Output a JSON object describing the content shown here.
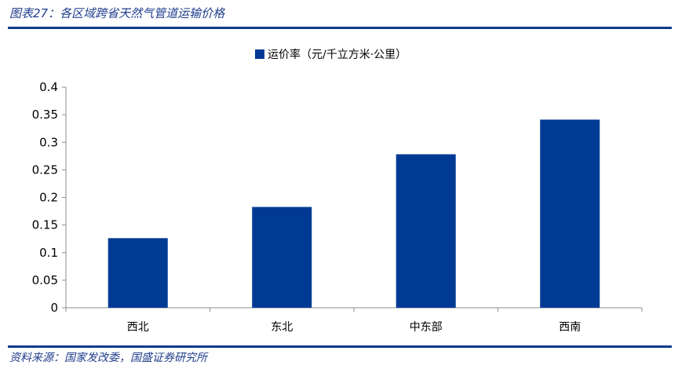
{
  "figure": {
    "title": "图表27：各区域跨省天然气管道运输价格",
    "source": "资料来源：国家发改委，国盛证券研究所"
  },
  "colors": {
    "bar": "#003a94",
    "rule": "#0d3a8c",
    "caption_text": "#1f3d8c"
  },
  "chart_data": {
    "type": "bar",
    "categories": [
      "西北",
      "东北",
      "中东部",
      "西南"
    ],
    "series": [
      {
        "name": "运价率（元/千立方米·公里）",
        "values": [
          0.1262,
          0.1828,
          0.2783,
          0.3411
        ]
      }
    ],
    "ylim": [
      0,
      0.4
    ],
    "yticks": [
      0,
      0.05,
      0.1,
      0.15,
      0.2,
      0.25,
      0.3,
      0.35,
      0.4
    ],
    "ytick_labels": [
      "0",
      "0.05",
      "0.1",
      "0.15",
      "0.2",
      "0.25",
      "0.3",
      "0.35",
      "0.4"
    ],
    "grid": false,
    "legend_position": "top-center"
  }
}
